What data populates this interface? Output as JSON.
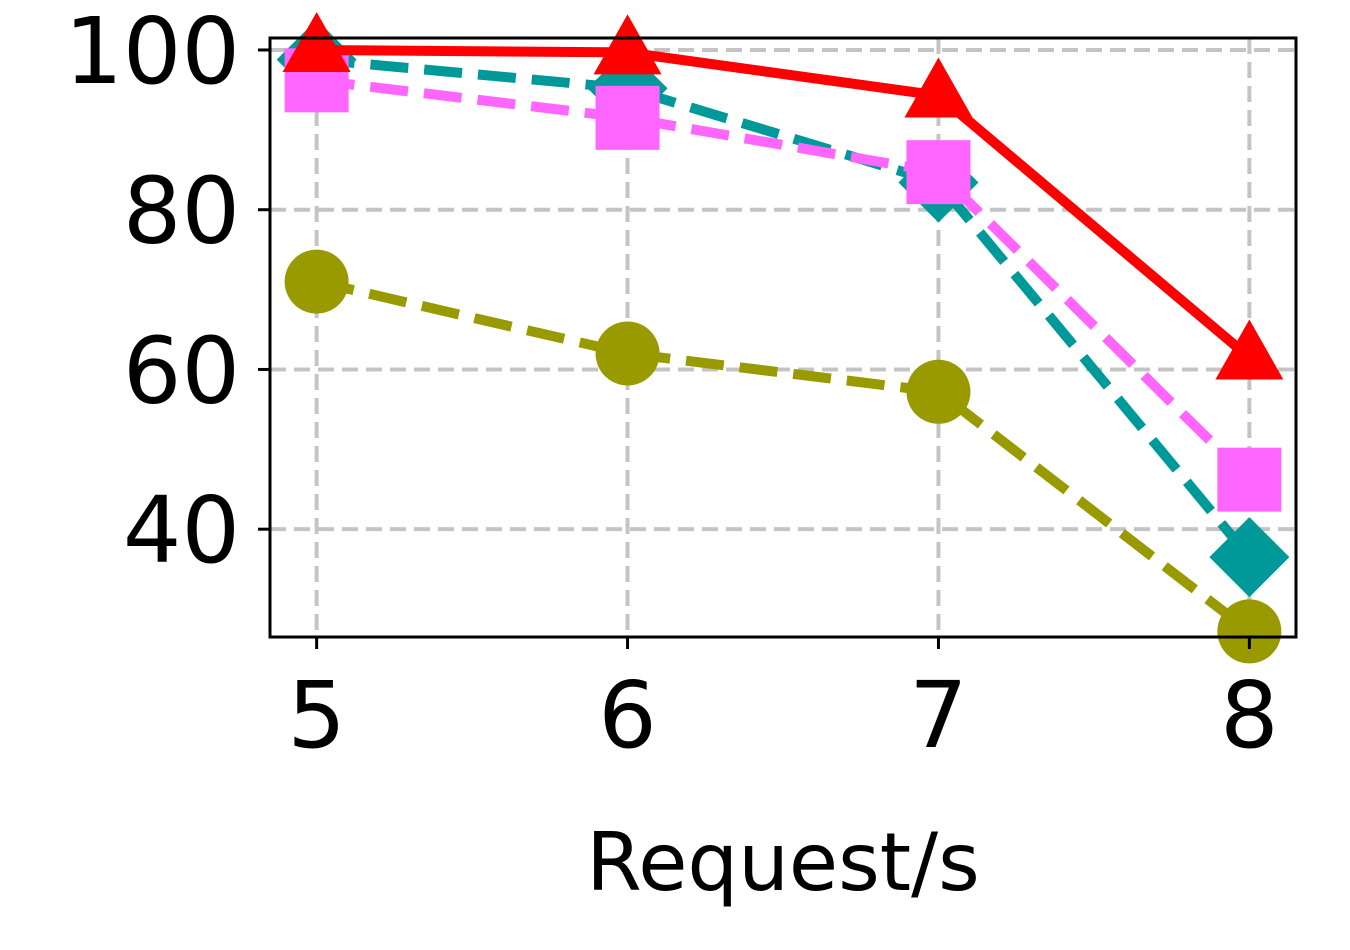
{
  "chart_data": {
    "type": "line",
    "title": "",
    "xlabel": "Request/s",
    "ylabel": "",
    "x": [
      5,
      6,
      7,
      8
    ],
    "x_tick_labels": [
      "5",
      "6",
      "7",
      "8"
    ],
    "y_ticks": [
      40,
      60,
      80,
      100
    ],
    "y_tick_labels": [
      "40",
      "60",
      "80",
      "100"
    ],
    "xlim": [
      4.85,
      8.15
    ],
    "ylim": [
      26.5,
      101.5
    ],
    "grid": true,
    "legend": "none",
    "series": [
      {
        "values": [
          71,
          62,
          57.2,
          27.2
        ],
        "color": "#999900",
        "marker": "circle",
        "line": "dashed"
      },
      {
        "values": [
          98.8,
          95.2,
          83.4,
          36.5
        ],
        "color": "#009999",
        "marker": "diamond",
        "line": "dashed"
      },
      {
        "values": [
          96.2,
          91.5,
          84.7,
          46.2
        ],
        "color": "#ff66ff",
        "marker": "square",
        "line": "dashed"
      },
      {
        "values": [
          100,
          99.7,
          94.3,
          61.5
        ],
        "color": "#ff0000",
        "marker": "triangle",
        "line": "solid"
      }
    ]
  }
}
